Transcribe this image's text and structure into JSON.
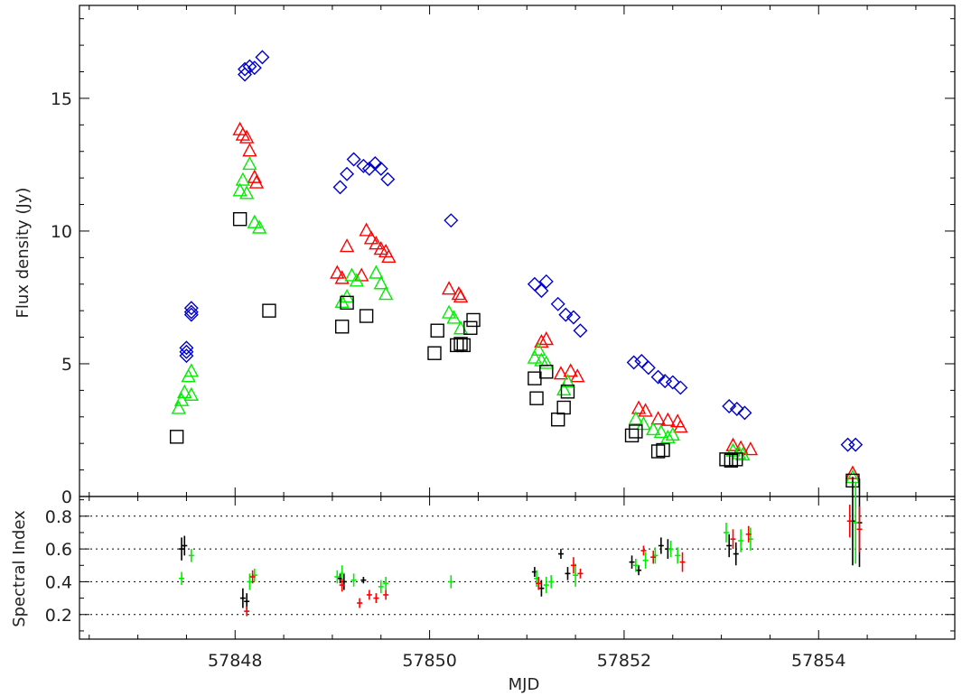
{
  "chart_data": [
    {
      "type": "scatter",
      "title": "",
      "xlabel": "",
      "ylabel": "Flux density (Jy)",
      "xlim": [
        57846.4,
        57855.4
      ],
      "ylim": [
        0,
        18.5
      ],
      "yticks": [
        0,
        5,
        10,
        15
      ],
      "ytick_labels": [
        "0",
        "5",
        "10",
        "15"
      ],
      "grid": false,
      "legend": "none",
      "series": [
        {
          "color": "#0000cc",
          "marker": "diamond",
          "points": [
            [
              57847.5,
              5.6
            ],
            [
              57847.5,
              5.45
            ],
            [
              57847.5,
              5.3
            ],
            [
              57847.55,
              7.1
            ],
            [
              57847.55,
              6.95
            ],
            [
              57847.55,
              6.85
            ],
            [
              57848.1,
              16.1
            ],
            [
              57848.1,
              15.9
            ],
            [
              57848.15,
              16.2
            ],
            [
              57848.2,
              16.15
            ],
            [
              57848.28,
              16.55
            ],
            [
              57849.08,
              11.65
            ],
            [
              57849.15,
              12.15
            ],
            [
              57849.22,
              12.7
            ],
            [
              57849.32,
              12.45
            ],
            [
              57849.38,
              12.35
            ],
            [
              57849.44,
              12.55
            ],
            [
              57849.5,
              12.35
            ],
            [
              57849.57,
              11.95
            ],
            [
              57850.22,
              10.4
            ],
            [
              57851.08,
              8.0
            ],
            [
              57851.15,
              7.75
            ],
            [
              57851.2,
              8.1
            ],
            [
              57851.32,
              7.25
            ],
            [
              57851.4,
              6.85
            ],
            [
              57851.48,
              6.75
            ],
            [
              57851.55,
              6.25
            ],
            [
              57852.1,
              5.05
            ],
            [
              57852.18,
              5.1
            ],
            [
              57852.25,
              4.85
            ],
            [
              57852.35,
              4.5
            ],
            [
              57852.42,
              4.35
            ],
            [
              57852.5,
              4.3
            ],
            [
              57852.58,
              4.1
            ],
            [
              57853.08,
              3.4
            ],
            [
              57853.16,
              3.3
            ],
            [
              57853.24,
              3.15
            ],
            [
              57854.3,
              1.95
            ],
            [
              57854.38,
              1.95
            ]
          ]
        },
        {
          "color": "#ff0000",
          "marker": "triangle",
          "points": [
            [
              57848.05,
              13.8
            ],
            [
              57848.08,
              13.6
            ],
            [
              57848.12,
              13.5
            ],
            [
              57848.15,
              13.0
            ],
            [
              57848.2,
              12.0
            ],
            [
              57848.22,
              11.8
            ],
            [
              57849.05,
              8.4
            ],
            [
              57849.1,
              8.2
            ],
            [
              57849.15,
              9.4
            ],
            [
              57849.3,
              8.3
            ],
            [
              57849.35,
              10.0
            ],
            [
              57849.4,
              9.7
            ],
            [
              57849.45,
              9.5
            ],
            [
              57849.5,
              9.3
            ],
            [
              57849.55,
              9.2
            ],
            [
              57849.58,
              9.0
            ],
            [
              57850.2,
              7.8
            ],
            [
              57850.3,
              7.6
            ],
            [
              57850.32,
              7.5
            ],
            [
              57851.15,
              5.8
            ],
            [
              57851.2,
              5.9
            ],
            [
              57851.35,
              4.6
            ],
            [
              57851.45,
              4.7
            ],
            [
              57851.52,
              4.5
            ],
            [
              57852.15,
              3.3
            ],
            [
              57852.22,
              3.2
            ],
            [
              57852.35,
              2.9
            ],
            [
              57852.45,
              2.85
            ],
            [
              57852.55,
              2.8
            ],
            [
              57852.58,
              2.6
            ],
            [
              57853.12,
              1.9
            ],
            [
              57853.2,
              1.8
            ],
            [
              57853.3,
              1.75
            ],
            [
              57854.35,
              0.85
            ]
          ]
        },
        {
          "color": "#00ee00",
          "marker": "triangle",
          "points": [
            [
              57847.42,
              3.3
            ],
            [
              57847.45,
              3.6
            ],
            [
              57847.48,
              3.9
            ],
            [
              57847.52,
              4.5
            ],
            [
              57847.55,
              4.7
            ],
            [
              57847.55,
              3.8
            ],
            [
              57848.05,
              11.5
            ],
            [
              57848.08,
              11.9
            ],
            [
              57848.12,
              11.4
            ],
            [
              57848.15,
              12.5
            ],
            [
              57848.2,
              10.3
            ],
            [
              57848.25,
              10.1
            ],
            [
              57849.1,
              7.3
            ],
            [
              57849.15,
              7.5
            ],
            [
              57849.2,
              8.3
            ],
            [
              57849.25,
              8.1
            ],
            [
              57849.45,
              8.4
            ],
            [
              57849.5,
              8.0
            ],
            [
              57849.55,
              7.6
            ],
            [
              57850.2,
              6.9
            ],
            [
              57850.25,
              6.7
            ],
            [
              57850.32,
              6.3
            ],
            [
              57851.08,
              5.2
            ],
            [
              57851.12,
              5.5
            ],
            [
              57851.15,
              5.1
            ],
            [
              57851.2,
              5.0
            ],
            [
              57851.38,
              4.0
            ],
            [
              57851.42,
              4.3
            ],
            [
              57852.12,
              2.9
            ],
            [
              57852.2,
              2.7
            ],
            [
              57852.3,
              2.5
            ],
            [
              57852.38,
              2.4
            ],
            [
              57852.45,
              2.2
            ],
            [
              57852.5,
              2.3
            ],
            [
              57853.12,
              1.7
            ],
            [
              57853.18,
              1.6
            ],
            [
              57853.22,
              1.55
            ],
            [
              57854.35,
              0.7
            ]
          ]
        },
        {
          "color": "#000000",
          "marker": "square",
          "points": [
            [
              57847.4,
              2.25
            ],
            [
              57848.05,
              10.45
            ],
            [
              57848.35,
              7.0
            ],
            [
              57849.1,
              6.4
            ],
            [
              57849.15,
              7.3
            ],
            [
              57849.35,
              6.8
            ],
            [
              57850.05,
              5.4
            ],
            [
              57850.08,
              6.25
            ],
            [
              57850.28,
              5.7
            ],
            [
              57850.32,
              5.75
            ],
            [
              57850.35,
              5.7
            ],
            [
              57850.42,
              6.35
            ],
            [
              57850.45,
              6.65
            ],
            [
              57851.08,
              4.45
            ],
            [
              57851.1,
              3.7
            ],
            [
              57851.2,
              4.7
            ],
            [
              57851.32,
              2.9
            ],
            [
              57851.38,
              3.35
            ],
            [
              57851.42,
              3.95
            ],
            [
              57852.08,
              2.3
            ],
            [
              57852.12,
              2.45
            ],
            [
              57852.35,
              1.7
            ],
            [
              57852.4,
              1.75
            ],
            [
              57853.05,
              1.4
            ],
            [
              57853.1,
              1.35
            ],
            [
              57853.15,
              1.4
            ],
            [
              57854.35,
              0.6
            ]
          ]
        }
      ]
    },
    {
      "type": "scatter",
      "title": "",
      "xlabel": "MJD",
      "ylabel": "Spectral Index",
      "xlim": [
        57846.4,
        57855.4
      ],
      "ylim": [
        0.05,
        0.92
      ],
      "xticks": [
        57848,
        57850,
        57852,
        57854
      ],
      "xtick_labels": [
        "57848",
        "57850",
        "57852",
        "57854"
      ],
      "yticks": [
        0.2,
        0.4,
        0.6,
        0.8
      ],
      "ytick_labels": [
        "0.2",
        "0.4",
        "0.6",
        "0.8"
      ],
      "gridlines_dotted": [
        0.2,
        0.4,
        0.6,
        0.8
      ],
      "legend": "none",
      "series": [
        {
          "color": "#000000",
          "marker": "errorbar",
          "points": [
            [
              57847.45,
              0.6,
              0.07
            ],
            [
              57847.48,
              0.62,
              0.06
            ],
            [
              57848.08,
              0.3,
              0.06
            ],
            [
              57848.12,
              0.28,
              0.05
            ],
            [
              57849.08,
              0.42,
              0.03
            ],
            [
              57849.12,
              0.4,
              0.05
            ],
            [
              57849.32,
              0.41,
              0.02
            ],
            [
              57851.08,
              0.46,
              0.03
            ],
            [
              57851.15,
              0.36,
              0.05
            ],
            [
              57851.35,
              0.57,
              0.03
            ],
            [
              57851.42,
              0.45,
              0.04
            ],
            [
              57852.08,
              0.52,
              0.04
            ],
            [
              57852.15,
              0.47,
              0.03
            ],
            [
              57852.38,
              0.62,
              0.05
            ],
            [
              57852.45,
              0.6,
              0.06
            ],
            [
              57853.08,
              0.62,
              0.07
            ],
            [
              57853.15,
              0.57,
              0.07
            ],
            [
              57854.35,
              0.77,
              0.27
            ],
            [
              57854.42,
              0.76,
              0.27
            ]
          ]
        },
        {
          "color": "#00ee00",
          "marker": "errorbar",
          "points": [
            [
              57847.45,
              0.42,
              0.04
            ],
            [
              57847.55,
              0.56,
              0.04
            ],
            [
              57848.15,
              0.4,
              0.05
            ],
            [
              57848.2,
              0.44,
              0.04
            ],
            [
              57849.05,
              0.43,
              0.04
            ],
            [
              57849.1,
              0.45,
              0.05
            ],
            [
              57849.22,
              0.41,
              0.04
            ],
            [
              57849.5,
              0.37,
              0.04
            ],
            [
              57849.55,
              0.39,
              0.04
            ],
            [
              57850.22,
              0.4,
              0.04
            ],
            [
              57851.1,
              0.42,
              0.05
            ],
            [
              57851.2,
              0.38,
              0.05
            ],
            [
              57851.25,
              0.4,
              0.04
            ],
            [
              57851.5,
              0.44,
              0.07
            ],
            [
              57852.12,
              0.5,
              0.04
            ],
            [
              57852.22,
              0.53,
              0.05
            ],
            [
              57852.32,
              0.56,
              0.05
            ],
            [
              57852.48,
              0.6,
              0.05
            ],
            [
              57852.55,
              0.56,
              0.05
            ],
            [
              57853.05,
              0.7,
              0.06
            ],
            [
              57853.2,
              0.65,
              0.07
            ],
            [
              57853.3,
              0.66,
              0.07
            ],
            [
              57854.38,
              0.76,
              0.25
            ]
          ]
        },
        {
          "color": "#ff0000",
          "marker": "errorbar",
          "points": [
            [
              57848.12,
              0.22,
              0.03
            ],
            [
              57848.18,
              0.43,
              0.04
            ],
            [
              57849.1,
              0.38,
              0.04
            ],
            [
              57849.28,
              0.27,
              0.03
            ],
            [
              57849.38,
              0.32,
              0.03
            ],
            [
              57849.45,
              0.3,
              0.03
            ],
            [
              57849.55,
              0.32,
              0.03
            ],
            [
              57851.12,
              0.39,
              0.04
            ],
            [
              57851.48,
              0.5,
              0.05
            ],
            [
              57851.55,
              0.45,
              0.03
            ],
            [
              57852.2,
              0.59,
              0.03
            ],
            [
              57852.3,
              0.55,
              0.04
            ],
            [
              57852.6,
              0.52,
              0.06
            ],
            [
              57853.12,
              0.66,
              0.06
            ],
            [
              57853.28,
              0.69,
              0.05
            ],
            [
              57854.32,
              0.77,
              0.1
            ],
            [
              57854.42,
              0.72,
              0.14
            ]
          ]
        }
      ]
    }
  ]
}
